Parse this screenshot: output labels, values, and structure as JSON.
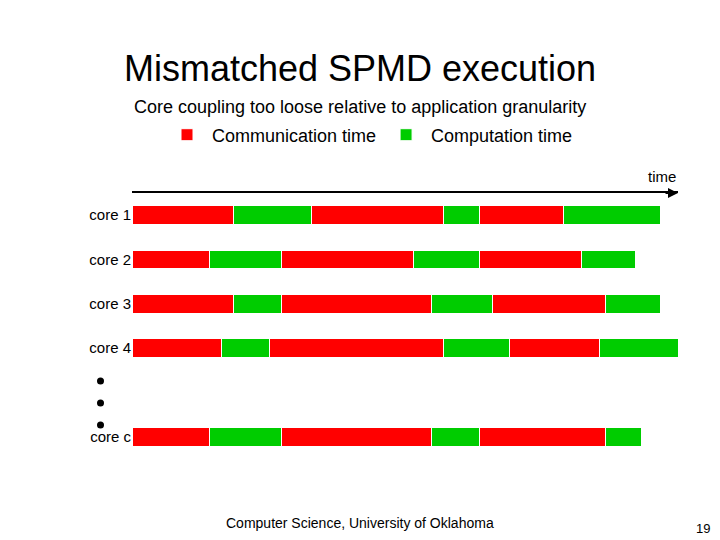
{
  "chart_data": {
    "type": "bar",
    "title": "Mismatched SPMD execution",
    "subtitle": "Core coupling too loose relative to application granularity",
    "xlabel": "time",
    "annotations": [
      "Computer Science, University of Oklahoma",
      "19"
    ],
    "orientation": "horizontal",
    "stacked": true,
    "legend": "top",
    "grid": false,
    "tick_labels": "y",
    "data_labels": false,
    "categories": [
      "core 1",
      "core 2",
      "core 3",
      "core 4",
      null,
      "core c"
    ],
    "xlim": [
      0,
      546
    ],
    "series": [
      {
        "name": "Communication time",
        "color": "#ff0000",
        "values": [
          101,
          77,
          101,
          89,
          null,
          77
        ]
      },
      {
        "name": "Computation time",
        "color": "#00cc00",
        "values": [
          78,
          72,
          48,
          48,
          null,
          72
        ]
      },
      {
        "name": "Communication time",
        "color": "#ff0000",
        "values": [
          132,
          132,
          150,
          174,
          null,
          150
        ]
      },
      {
        "name": "Computation time",
        "color": "#00cc00",
        "values": [
          36,
          66,
          61,
          66,
          null,
          48
        ]
      },
      {
        "name": "Communication time",
        "color": "#ff0000",
        "values": [
          84,
          102,
          113,
          90,
          null,
          126
        ]
      },
      {
        "name": "Computation time",
        "color": "#00cc00",
        "values": [
          97,
          54,
          55,
          79,
          null,
          36
        ]
      }
    ]
  }
}
